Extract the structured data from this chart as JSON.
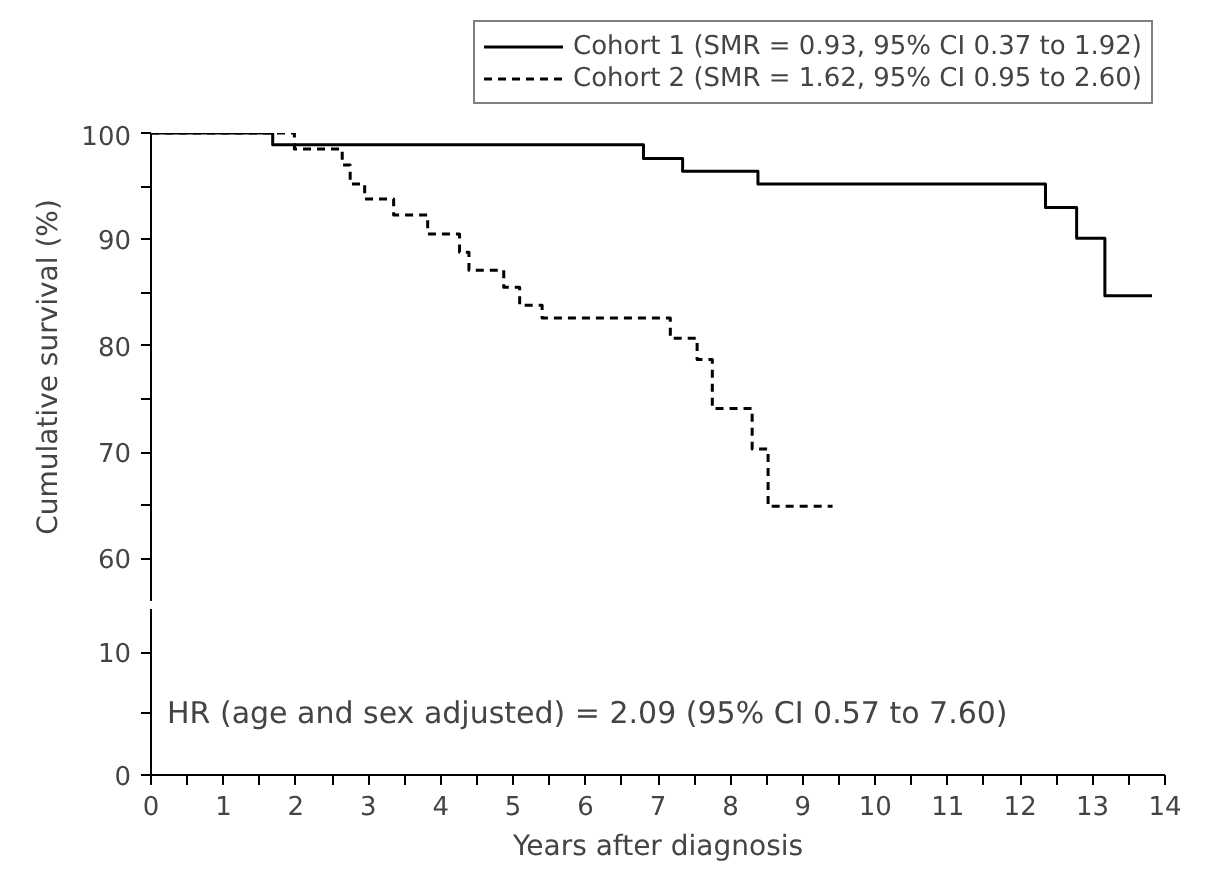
{
  "chart_data": [
    {
      "type": "step",
      "ylabel": "Cumulative survival (%)",
      "xlim": [
        0,
        14
      ],
      "ylim": [
        56,
        100
      ],
      "yticks": [
        60,
        {
          "value": 65,
          "label": null
        },
        70,
        {
          "value": 75,
          "label": null
        },
        80,
        {
          "value": 85,
          "label": null
        },
        90,
        {
          "value": 95,
          "label": null
        },
        100
      ],
      "tick_labels": "y",
      "legend": "top",
      "grid": false,
      "series": [
        {
          "name": "Cohort 1 (SMR = 0.93, 95% CI 0.37 to 1.92)",
          "color": "#000000",
          "line_style": "solid",
          "x": [
            0,
            1.68,
            6.8,
            7.34,
            8.38,
            12.35,
            12.78,
            13.17,
            13.82
          ],
          "values": [
            100,
            98.9,
            97.6,
            96.4,
            95.2,
            93.0,
            90.1,
            84.7,
            84.7
          ]
        },
        {
          "name": "Cohort 2 (SMR = 1.62, 95% CI 0.95 to 2.60)",
          "color": "#000000",
          "line_style": "dashed",
          "x": [
            0,
            1.98,
            2.64,
            2.75,
            2.95,
            3.35,
            3.82,
            4.26,
            4.39,
            4.87,
            5.09,
            5.4,
            7.17,
            7.54,
            7.75,
            8.3,
            8.52,
            9.41
          ],
          "values": [
            100,
            98.5,
            97.0,
            95.2,
            93.8,
            92.3,
            90.5,
            88.8,
            87.1,
            85.5,
            83.8,
            82.6,
            80.7,
            78.7,
            74.1,
            70.3,
            64.9,
            64.9
          ]
        }
      ]
    },
    {
      "type": "line",
      "xlabel": "Years after diagnosis",
      "xlim": [
        0,
        14
      ],
      "ylim": [
        0,
        13.5
      ],
      "yticks": [
        0,
        {
          "value": 5,
          "label": null
        },
        10
      ],
      "xticks": [
        0,
        {
          "value": 0.5,
          "label": null
        },
        1,
        {
          "value": 1.5,
          "label": null
        },
        2,
        {
          "value": 2.5,
          "label": null
        },
        3,
        {
          "value": 3.5,
          "label": null
        },
        4,
        {
          "value": 4.5,
          "label": null
        },
        5,
        {
          "value": 5.5,
          "label": null
        },
        6,
        {
          "value": 6.5,
          "label": null
        },
        7,
        {
          "value": 7.5,
          "label": null
        },
        8,
        {
          "value": 8.5,
          "label": null
        },
        9,
        {
          "value": 9.5,
          "label": null
        },
        10,
        {
          "value": 10.5,
          "label": null
        },
        11,
        {
          "value": 11.5,
          "label": null
        },
        12,
        {
          "value": 12.5,
          "label": null
        },
        13,
        {
          "value": 13.5,
          "label": null
        },
        14
      ],
      "grid": false,
      "annotations": [
        "HR (age and sex adjusted) = 2.09 (95% CI 0.57 to 7.60)"
      ]
    }
  ]
}
